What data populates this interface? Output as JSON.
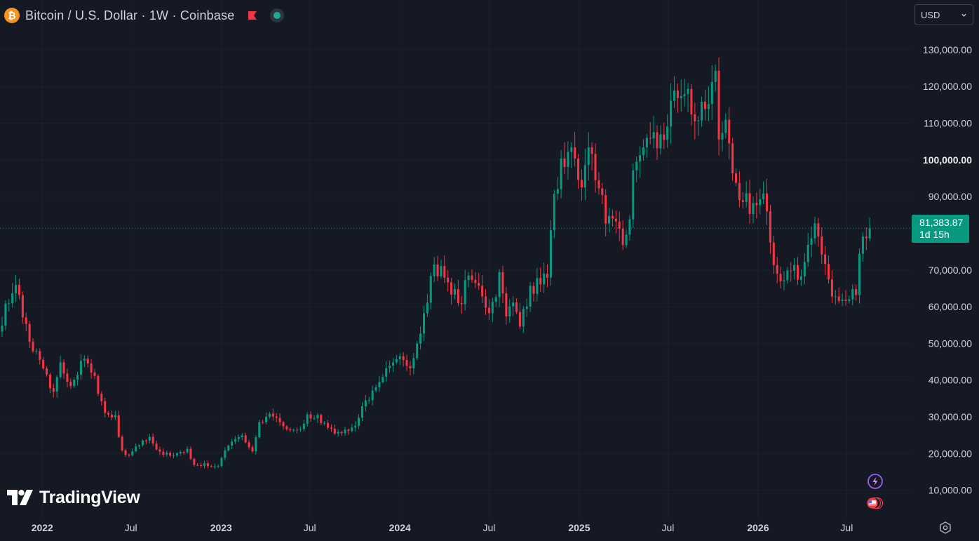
{
  "header": {
    "title": "Bitcoin / U.S. Dollar · 1W · Coinbase",
    "coin_icon": "bitcoin-icon",
    "btc_symbol": "₿"
  },
  "currency": {
    "selected": "USD"
  },
  "logo": {
    "text": "TradingView"
  },
  "last_price": {
    "value": "81,383.87",
    "countdown": "1d 15h"
  },
  "colors": {
    "background": "#151924",
    "up": "#089981",
    "down": "#f23645",
    "text": "#d1d4dc",
    "grid": "#2a2e39"
  },
  "chart_data": {
    "type": "candlestick",
    "timeframe": "1W",
    "exchange": "Coinbase",
    "ylim": [
      4000,
      134000
    ],
    "xlim": [
      "2021-10-11",
      "2026-08-31"
    ],
    "current_price": 81383.87,
    "y_ticks": [
      {
        "value": 130000,
        "label": "130,000.00"
      },
      {
        "value": 120000,
        "label": "120,000.00"
      },
      {
        "value": 110000,
        "label": "110,000.00"
      },
      {
        "value": 100000,
        "label": "100,000.00"
      },
      {
        "value": 90000,
        "label": "90,000.00"
      },
      {
        "value": 70000,
        "label": "70,000.00"
      },
      {
        "value": 60000,
        "label": "60,000.00"
      },
      {
        "value": 50000,
        "label": "50,000.00"
      },
      {
        "value": 40000,
        "label": "40,000.00"
      },
      {
        "value": 30000,
        "label": "30,000.00"
      },
      {
        "value": 20000,
        "label": "20,000.00"
      },
      {
        "value": 10000,
        "label": "10,000.00"
      }
    ],
    "x_ticks": [
      {
        "date": "2022-01-01",
        "label": "2022",
        "major": true
      },
      {
        "date": "2022-07-01",
        "label": "Jul",
        "major": false
      },
      {
        "date": "2023-01-01",
        "label": "2023",
        "major": true
      },
      {
        "date": "2023-07-01",
        "label": "Jul",
        "major": false
      },
      {
        "date": "2024-01-01",
        "label": "2024",
        "major": true
      },
      {
        "date": "2024-07-01",
        "label": "Jul",
        "major": false
      },
      {
        "date": "2025-01-01",
        "label": "2025",
        "major": true
      },
      {
        "date": "2025-07-01",
        "label": "Jul",
        "major": false
      },
      {
        "date": "2026-01-01",
        "label": "2026",
        "major": true
      },
      {
        "date": "2026-07-01",
        "label": "Jul",
        "major": false
      }
    ],
    "anchors": [
      [
        "2021-10-11",
        56000
      ],
      [
        "2021-10-18",
        61000
      ],
      [
        "2021-10-25",
        62000
      ],
      [
        "2021-11-08",
        65000
      ],
      [
        "2021-11-22",
        58000
      ],
      [
        "2021-12-06",
        50000
      ],
      [
        "2021-12-20",
        48000
      ],
      [
        "2022-01-03",
        43000
      ],
      [
        "2022-01-24",
        36500
      ],
      [
        "2022-02-07",
        44000
      ],
      [
        "2022-02-21",
        38500
      ],
      [
        "2022-03-07",
        39000
      ],
      [
        "2022-03-28",
        46500
      ],
      [
        "2022-04-18",
        40000
      ],
      [
        "2022-05-09",
        30500
      ],
      [
        "2022-05-30",
        30000
      ],
      [
        "2022-06-13",
        20500
      ],
      [
        "2022-06-27",
        19500
      ],
      [
        "2022-07-18",
        22500
      ],
      [
        "2022-08-08",
        24300
      ],
      [
        "2022-08-29",
        20000
      ],
      [
        "2022-09-26",
        19400
      ],
      [
        "2022-10-24",
        20800
      ],
      [
        "2022-11-07",
        16800
      ],
      [
        "2022-12-05",
        17000
      ],
      [
        "2022-12-26",
        16600
      ],
      [
        "2023-01-16",
        22800
      ],
      [
        "2023-02-13",
        24500
      ],
      [
        "2023-03-06",
        20500
      ],
      [
        "2023-03-20",
        28000
      ],
      [
        "2023-04-10",
        30300
      ],
      [
        "2023-05-01",
        28500
      ],
      [
        "2023-06-05",
        25800
      ],
      [
        "2023-06-26",
        30500
      ],
      [
        "2023-07-17",
        29800
      ],
      [
        "2023-08-14",
        26100
      ],
      [
        "2023-09-11",
        26400
      ],
      [
        "2023-10-02",
        27500
      ],
      [
        "2023-10-23",
        34500
      ],
      [
        "2023-11-13",
        37500
      ],
      [
        "2023-12-04",
        43700
      ],
      [
        "2024-01-08",
        46000
      ],
      [
        "2024-01-22",
        42000
      ],
      [
        "2024-02-12",
        52000
      ],
      [
        "2024-03-04",
        68500
      ],
      [
        "2024-03-11",
        69500
      ],
      [
        "2024-03-25",
        71000
      ],
      [
        "2024-04-15",
        64000
      ],
      [
        "2024-05-06",
        61500
      ],
      [
        "2024-05-20",
        69500
      ],
      [
        "2024-06-10",
        66500
      ],
      [
        "2024-07-01",
        56700
      ],
      [
        "2024-07-22",
        68000
      ],
      [
        "2024-08-05",
        58700
      ],
      [
        "2024-08-19",
        63000
      ],
      [
        "2024-09-02",
        54500
      ],
      [
        "2024-09-23",
        64000
      ],
      [
        "2024-10-14",
        68000
      ],
      [
        "2024-10-28",
        70000
      ],
      [
        "2024-11-11",
        91000
      ],
      [
        "2024-11-25",
        97500
      ],
      [
        "2024-12-16",
        102000
      ],
      [
        "2025-01-06",
        94500
      ],
      [
        "2025-01-20",
        104000
      ],
      [
        "2025-02-03",
        97000
      ],
      [
        "2025-02-24",
        84500
      ],
      [
        "2025-03-10",
        82500
      ],
      [
        "2025-04-07",
        78000
      ],
      [
        "2025-04-21",
        94500
      ],
      [
        "2025-05-12",
        103500
      ],
      [
        "2025-06-02",
        105500
      ],
      [
        "2025-06-23",
        107000
      ],
      [
        "2025-07-07",
        117500
      ],
      [
        "2025-07-21",
        118500
      ],
      [
        "2025-08-04",
        116500
      ],
      [
        "2025-08-11",
        118200
      ],
      [
        "2025-08-25",
        108500
      ],
      [
        "2025-09-08",
        115500
      ],
      [
        "2025-09-29",
        120000
      ],
      [
        "2025-10-06",
        123500
      ],
      [
        "2025-10-13",
        106500
      ],
      [
        "2025-10-27",
        110500
      ],
      [
        "2025-11-10",
        94500
      ],
      [
        "2025-11-24",
        90000
      ],
      [
        "2025-12-15",
        87500
      ],
      [
        "2026-01-05",
        90500
      ],
      [
        "2026-01-12",
        93000
      ],
      [
        "2026-02-02",
        70500
      ],
      [
        "2026-02-16",
        67500
      ],
      [
        "2026-03-09",
        70500
      ],
      [
        "2026-03-30",
        68500
      ],
      [
        "2026-04-13",
        76000
      ],
      [
        "2026-04-27",
        80500
      ],
      [
        "2026-05-11",
        75500
      ],
      [
        "2026-06-01",
        63500
      ],
      [
        "2026-06-22",
        62500
      ],
      [
        "2026-07-13",
        64000
      ],
      [
        "2026-07-20",
        63000
      ],
      [
        "2026-07-27",
        76500
      ],
      [
        "2026-08-10",
        79000
      ],
      [
        "2026-08-17",
        81383.87
      ]
    ]
  }
}
